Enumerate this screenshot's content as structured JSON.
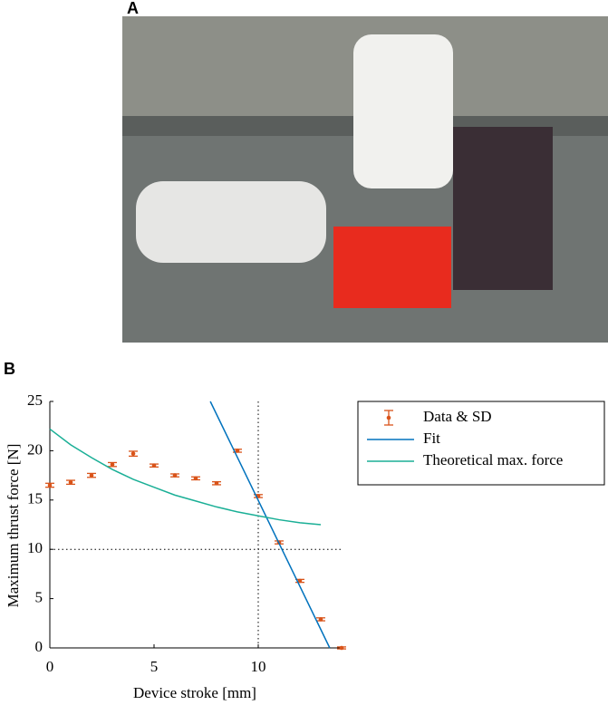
{
  "panel_a": {
    "label": "A"
  },
  "chart_data": {
    "type": "line",
    "panel_label": "B",
    "xlabel": "Device stroke [mm]",
    "ylabel": "Maximum thrust force [N]",
    "xlim": [
      0,
      14
    ],
    "ylim": [
      0,
      25
    ],
    "xticks": [
      0,
      5,
      10
    ],
    "yticks": [
      0,
      5,
      10,
      15,
      20,
      25
    ],
    "reference_lines": {
      "x": 10,
      "y": 10
    },
    "legend_position": "upper right",
    "series": [
      {
        "name": "Data & SD",
        "color": "#d95319",
        "style": "errorbar",
        "x": [
          0,
          1,
          2,
          3,
          4,
          5,
          6,
          7,
          8,
          9,
          10,
          11,
          12,
          13,
          14
        ],
        "values": [
          16.5,
          16.8,
          17.5,
          18.6,
          19.7,
          18.5,
          17.5,
          17.2,
          16.7,
          20.0,
          15.4,
          10.7,
          6.8,
          2.9,
          0
        ],
        "errors": [
          0.2,
          0.2,
          0.2,
          0.2,
          0.25,
          0.15,
          0.15,
          0.15,
          0.15,
          0.15,
          0.15,
          0.15,
          0.15,
          0.15,
          0.1
        ]
      },
      {
        "name": "Fit",
        "color": "#0072bd",
        "style": "line",
        "x": [
          7.7,
          13.43
        ],
        "values": [
          25,
          0
        ]
      },
      {
        "name": "Theoretical max. force",
        "color": "#1aaf96",
        "style": "line",
        "x": [
          0,
          1,
          2,
          3,
          4,
          5,
          6,
          7,
          8,
          9,
          10,
          11,
          12,
          13
        ],
        "values": [
          22.2,
          20.6,
          19.3,
          18.1,
          17.1,
          16.3,
          15.5,
          14.9,
          14.3,
          13.8,
          13.4,
          13.0,
          12.7,
          12.5
        ]
      }
    ]
  }
}
